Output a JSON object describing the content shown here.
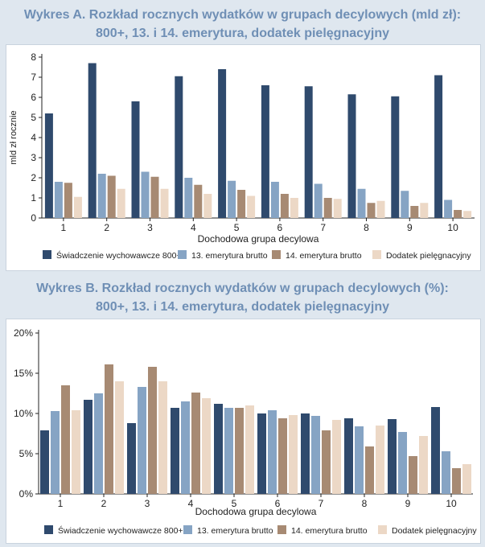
{
  "chart_data": [
    {
      "type": "bar",
      "title_line1": "Wykres A. Rozkład rocznych wydatków w grupach decylowych (mld zł):",
      "title_line2": "800+, 13. i 14. emerytura, dodatek pielęgnacyjny",
      "xlabel": "Dochodowa grupa decylowa",
      "ylabel": "mld zł rocznie",
      "ylim": [
        0,
        8
      ],
      "yticks": [
        "0",
        "1",
        "2",
        "3",
        "4",
        "5",
        "6",
        "7",
        "8"
      ],
      "categories": [
        "1",
        "2",
        "3",
        "4",
        "5",
        "6",
        "7",
        "8",
        "9",
        "10"
      ],
      "series": [
        {
          "name": "Świadczenie wychowawcze 800+",
          "color": "#2f4a6d",
          "values": [
            5.2,
            7.7,
            5.8,
            7.05,
            7.4,
            6.6,
            6.55,
            6.15,
            6.05,
            7.1
          ]
        },
        {
          "name": "13. emerytura brutto",
          "color": "#86a4c4",
          "values": [
            1.8,
            2.2,
            2.3,
            2.0,
            1.85,
            1.8,
            1.7,
            1.45,
            1.35,
            0.9
          ]
        },
        {
          "name": "14. emerytura brutto",
          "color": "#a78a73",
          "values": [
            1.75,
            2.1,
            2.05,
            1.65,
            1.4,
            1.2,
            1.0,
            0.75,
            0.6,
            0.4
          ]
        },
        {
          "name": "Dodatek pielęgnacyjny",
          "color": "#ecd8c6",
          "values": [
            1.05,
            1.45,
            1.45,
            1.2,
            1.1,
            1.0,
            0.95,
            0.85,
            0.75,
            0.35
          ]
        }
      ]
    },
    {
      "type": "bar",
      "title_line1": "Wykres B. Rozkład rocznych wydatków w grupach decylowych (%):",
      "title_line2": "800+, 13. i 14. emerytura, dodatek pielęgnacyjny",
      "xlabel": "Dochodowa grupa decylowa",
      "ylabel": "",
      "ylim": [
        0,
        20
      ],
      "yticks": [
        "0%",
        "5%",
        "10%",
        "15%",
        "20%"
      ],
      "categories": [
        "1",
        "2",
        "3",
        "4",
        "5",
        "6",
        "7",
        "8",
        "9",
        "10"
      ],
      "series": [
        {
          "name": "Świadczenie wychowawcze 800+",
          "color": "#2f4a6d",
          "values": [
            7.9,
            11.7,
            8.8,
            10.7,
            11.2,
            10.0,
            10.0,
            9.4,
            9.3,
            10.8
          ]
        },
        {
          "name": "13. emerytura brutto",
          "color": "#86a4c4",
          "values": [
            10.3,
            12.5,
            13.3,
            11.5,
            10.7,
            10.4,
            9.7,
            8.4,
            7.7,
            5.3
          ]
        },
        {
          "name": "14. emerytura brutto",
          "color": "#a78a73",
          "values": [
            13.5,
            16.1,
            15.8,
            12.6,
            10.7,
            9.4,
            7.9,
            5.9,
            4.7,
            3.2
          ]
        },
        {
          "name": "Dodatek pielęgnacyjny",
          "color": "#ecd8c6",
          "values": [
            10.4,
            14.0,
            14.0,
            11.9,
            11.0,
            9.8,
            9.2,
            8.5,
            7.2,
            3.7
          ]
        }
      ]
    }
  ]
}
